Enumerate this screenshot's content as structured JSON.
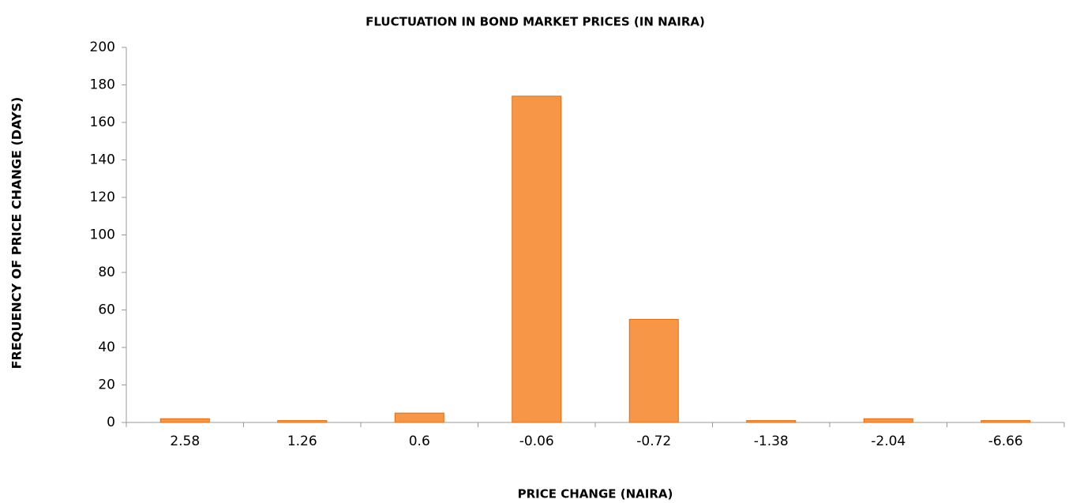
{
  "chart_data": {
    "type": "bar",
    "title": "FLUCTUATION IN BOND MARKET PRICES (IN NAIRA)",
    "x_label": "PRICE CHANGE (NAIRA)",
    "y_label": "FREQUENCY OF PRICE CHANGE  (DAYS)",
    "categories": [
      "2.58",
      "1.26",
      "0.6",
      "-0.06",
      "-0.72",
      "-1.38",
      "-2.04",
      "-6.66"
    ],
    "values": [
      2,
      1,
      5,
      174,
      55,
      1,
      2,
      1
    ],
    "color": "#f79646",
    "ylim": [
      0,
      200
    ],
    "yticks": [
      0,
      20,
      40,
      60,
      80,
      100,
      120,
      140,
      160,
      180,
      200
    ],
    "grid": false
  }
}
